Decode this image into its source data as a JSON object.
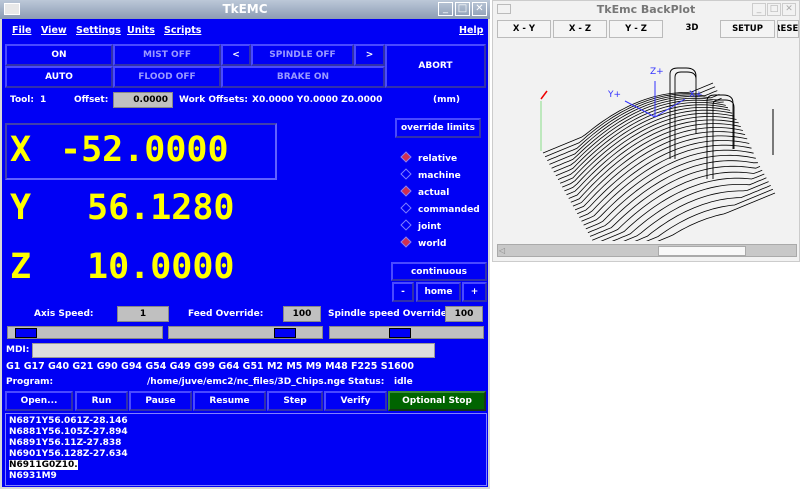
{
  "main_window": {
    "title": "TkEMC"
  },
  "menu": [
    "File",
    "View",
    "Settings",
    "Units",
    "Scripts"
  ],
  "help": "Help",
  "buttons": {
    "on": "ON",
    "mist": "MIST OFF",
    "spindle_dec": "<",
    "spindle": "SPINDLE OFF",
    "spindle_inc": ">",
    "abort": "ABORT",
    "auto": "AUTO",
    "flood": "FLOOD OFF",
    "brake": "BRAKE ON"
  },
  "tool": {
    "label": "Tool:",
    "value": "1",
    "offset_label": "Offset:",
    "offset_value": "0.0000",
    "work_offsets_label": "Work Offsets:",
    "work_offsets": "X0.0000 Y0.0000 Z0.0000",
    "units": "(mm)"
  },
  "position": [
    {
      "axis": "X",
      "value": "-52.0000"
    },
    {
      "axis": "Y",
      "value": "56.1280"
    },
    {
      "axis": "Z",
      "value": "10.0000"
    }
  ],
  "override_limits": "override limits",
  "radios": [
    {
      "label": "relative",
      "selected": true
    },
    {
      "label": "machine",
      "selected": false
    },
    {
      "label": "actual",
      "selected": true
    },
    {
      "label": "commanded",
      "selected": false
    },
    {
      "label": "joint",
      "selected": false
    },
    {
      "label": "world",
      "selected": true
    }
  ],
  "jog": {
    "mode": "continuous",
    "minus": "-",
    "home": "home",
    "plus": "+"
  },
  "speeds": {
    "axis_label": "Axis Speed:",
    "axis_value": "1",
    "feed_label": "Feed Override:",
    "feed_value": "100",
    "spindle_label": "Spindle speed Override:",
    "spindle_value": "100"
  },
  "sliders": {
    "axis_fraction": 0.05,
    "feed_fraction": 0.8,
    "spindle_fraction": 0.45
  },
  "mdi": {
    "label": "MDI:",
    "value": ""
  },
  "modal_codes": "G1 G17 G40 G21 G90 G94 G54 G49 G99 G64 G51 M2 M5 M9 M48 F225 S1600",
  "program": {
    "label": "Program:",
    "path": "/home/juve/emc2/nc_files/3D_Chips.ngc",
    "status_label": "-  Status:",
    "status": "idle"
  },
  "program_buttons": [
    "Open...",
    "Run",
    "Pause",
    "Resume",
    "Step",
    "Verify",
    "Optional Stop"
  ],
  "code_lines": [
    "N6871Y56.061Z-28.146",
    "N6881Y56.105Z-27.894",
    "N6891Y56.11Z-27.838",
    "N6901Y56.128Z-27.634",
    "N6911G0Z10.",
    "N6931M9"
  ],
  "highlighted_line": 4,
  "colors": {
    "panel": "#0000f5",
    "readout": "#ffff00",
    "optional_stop": "#006400"
  },
  "backplot": {
    "title": "TkEmc BackPlot",
    "tabs": [
      "X - Y",
      "X - Z",
      "Y - Z",
      "3D",
      "SETUP",
      "RESET"
    ],
    "active_tab": "3D",
    "axis_labels": {
      "x": "X+",
      "y": "Y+",
      "z": "Z+"
    }
  }
}
